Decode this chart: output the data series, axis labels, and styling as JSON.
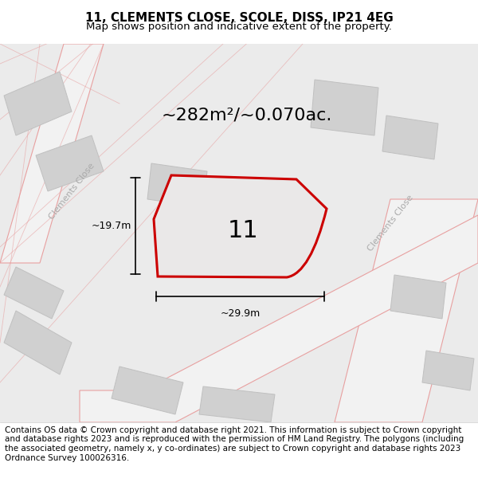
{
  "title": "11, CLEMENTS CLOSE, SCOLE, DISS, IP21 4EG",
  "subtitle": "Map shows position and indicative extent of the property.",
  "area_label": "~282m²/~0.070ac.",
  "plot_number": "11",
  "width_label": "~29.9m",
  "height_label": "~19.7m",
  "footer_text": "Contains OS data © Crown copyright and database right 2021. This information is subject to Crown copyright and database rights 2023 and is reproduced with the permission of HM Land Registry. The polygons (including the associated geometry, namely x, y co-ordinates) are subject to Crown copyright and database rights 2023 Ordnance Survey 100026316.",
  "bg_color": "#f0efef",
  "map_bg": "#e8e8e8",
  "road_color": "#f5c8c8",
  "building_color": "#d8d8d8",
  "plot_fill": "#e8e6e6",
  "plot_outline": "#cc0000",
  "road_line_color": "#e8a0a0",
  "street_label1": "Clements Close",
  "street_label2": "Clements Close",
  "title_fontsize": 11,
  "subtitle_fontsize": 9.5,
  "area_fontsize": 16,
  "plot_num_fontsize": 22,
  "measure_fontsize": 9,
  "footer_fontsize": 7.5
}
